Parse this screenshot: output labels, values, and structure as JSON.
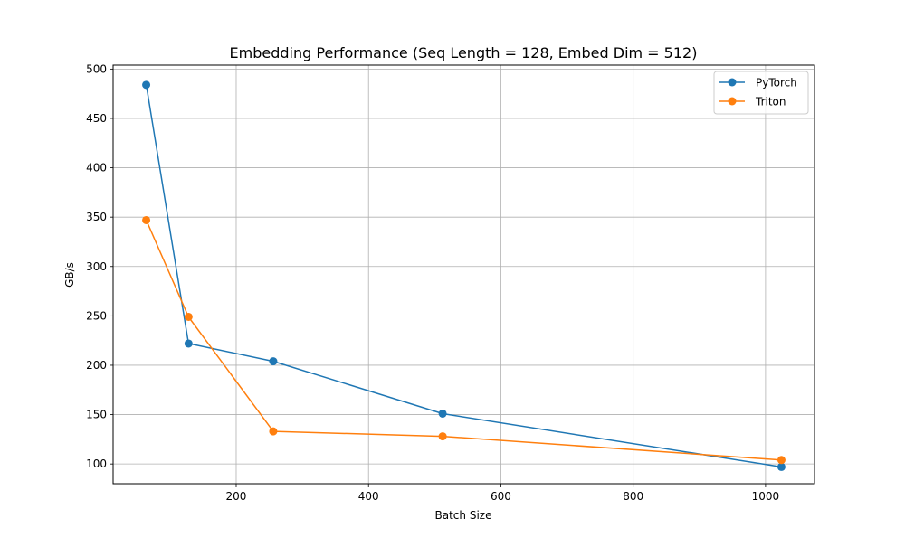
{
  "chart_data": {
    "type": "line",
    "title": "Embedding Performance (Seq Length = 128, Embed Dim = 512)",
    "xlabel": "Batch Size",
    "ylabel": "GB/s",
    "x": [
      64,
      128,
      256,
      512,
      1024
    ],
    "xlim": [
      14,
      1074
    ],
    "ylim": [
      80,
      504
    ],
    "xticks": [
      200,
      400,
      600,
      800,
      1000
    ],
    "yticks": [
      100,
      150,
      200,
      250,
      300,
      350,
      400,
      450,
      500
    ],
    "grid": true,
    "legend_position": "top-right",
    "series": [
      {
        "name": "PyTorch",
        "color": "#1f77b4",
        "values": [
          484,
          222,
          204,
          151,
          97
        ]
      },
      {
        "name": "Triton",
        "color": "#ff7f0e",
        "values": [
          347,
          249,
          133,
          128,
          104
        ]
      }
    ]
  }
}
